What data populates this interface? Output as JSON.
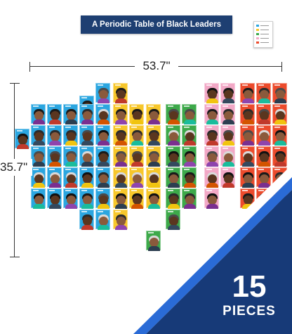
{
  "product": {
    "title": "A Periodic Table of Black Leaders",
    "width_label": "53.7\"",
    "height_label": "35.7\"",
    "pieces_count": "15",
    "pieces_label": "PIECES"
  },
  "colors": {
    "title_banner": "#1e3f72",
    "band_dark": "#173a78",
    "band_light": "#2a6bd6",
    "group_blue": "#2ba6e0",
    "group_yellow": "#f7c72b",
    "group_green": "#3da94a",
    "group_pink": "#f2a8c6",
    "group_red": "#ec4b2c"
  },
  "icons": {
    "key_card": "legend-card-icon"
  },
  "table_groups": [
    {
      "name": "blue",
      "color": "#2ba6e0",
      "tiles": 33
    },
    {
      "name": "yellow",
      "color": "#f7c72b",
      "tiles": 18
    },
    {
      "name": "green",
      "color": "#3da94a",
      "tiles": 16
    },
    {
      "name": "pink",
      "color": "#f2a8c6",
      "tiles": 11
    },
    {
      "name": "red",
      "color": "#ec4b2c",
      "tiles": 20
    }
  ]
}
